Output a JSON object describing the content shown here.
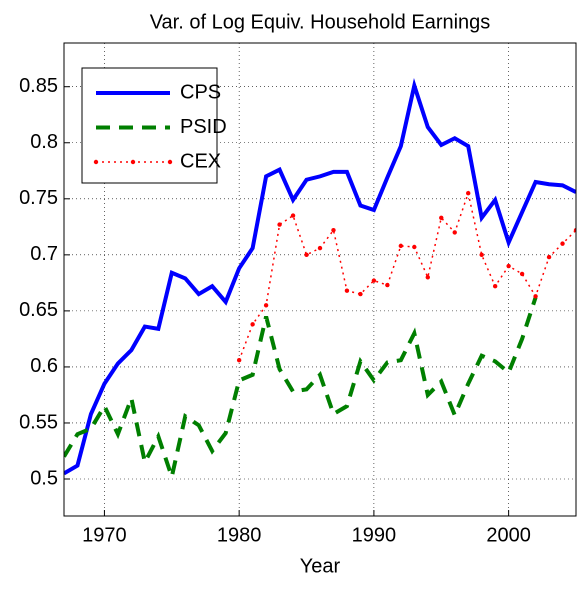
{
  "chart_data": {
    "type": "line",
    "title": "Var. of Log Equiv. Household Earnings",
    "x_label": "Year",
    "x": [
      1967,
      1968,
      1969,
      1970,
      1971,
      1972,
      1973,
      1974,
      1975,
      1976,
      1977,
      1978,
      1979,
      1980,
      1981,
      1982,
      1983,
      1984,
      1985,
      1986,
      1987,
      1988,
      1989,
      1990,
      1991,
      1992,
      1993,
      1994,
      1995,
      1996,
      1997,
      1998,
      1999,
      2000,
      2001,
      2002,
      2003,
      2004,
      2005
    ],
    "series": [
      {
        "name": "CPS",
        "color": "#0000ff",
        "style": "solid",
        "values": [
          0.505,
          0.512,
          0.558,
          0.585,
          0.603,
          0.615,
          0.636,
          0.634,
          0.684,
          0.679,
          0.665,
          0.672,
          0.658,
          0.688,
          0.706,
          0.77,
          0.776,
          0.749,
          0.767,
          0.77,
          0.774,
          0.774,
          0.744,
          0.74,
          0.769,
          0.797,
          0.851,
          0.814,
          0.798,
          0.804,
          0.797,
          0.733,
          0.749,
          0.711,
          0.738,
          0.765,
          0.763,
          0.762,
          0.756
        ]
      },
      {
        "name": "PSID",
        "color": "#007f00",
        "style": "dashed",
        "values": [
          0.52,
          0.54,
          0.545,
          0.565,
          0.54,
          0.572,
          0.515,
          0.538,
          0.502,
          0.556,
          0.548,
          0.525,
          0.541,
          0.588,
          0.593,
          0.645,
          0.598,
          0.578,
          0.58,
          0.593,
          0.558,
          0.565,
          0.605,
          0.588,
          0.604,
          0.606,
          0.63,
          0.575,
          0.587,
          0.557,
          0.585,
          0.61,
          0.605,
          0.595,
          0.625,
          0.662,
          null,
          null,
          null
        ]
      },
      {
        "name": "CEX",
        "color": "#ff0000",
        "style": "dotted",
        "values": [
          null,
          null,
          null,
          null,
          null,
          null,
          null,
          null,
          null,
          null,
          null,
          null,
          null,
          0.606,
          0.638,
          0.655,
          0.727,
          0.735,
          0.7,
          0.706,
          0.722,
          0.668,
          0.665,
          0.677,
          0.673,
          0.708,
          0.707,
          0.68,
          0.733,
          0.72,
          0.755,
          0.7,
          0.672,
          0.69,
          0.683,
          0.663,
          0.698,
          0.71,
          0.722
        ]
      }
    ],
    "xlim": [
      1967,
      2005
    ],
    "ylim": [
      0.467,
      0.889
    ],
    "xticks": [
      1970,
      1980,
      1990,
      2000
    ],
    "yticks": [
      0.5,
      0.55,
      0.6,
      0.65,
      0.7,
      0.75,
      0.8,
      0.85
    ],
    "grid": true,
    "legend": "upper left"
  }
}
